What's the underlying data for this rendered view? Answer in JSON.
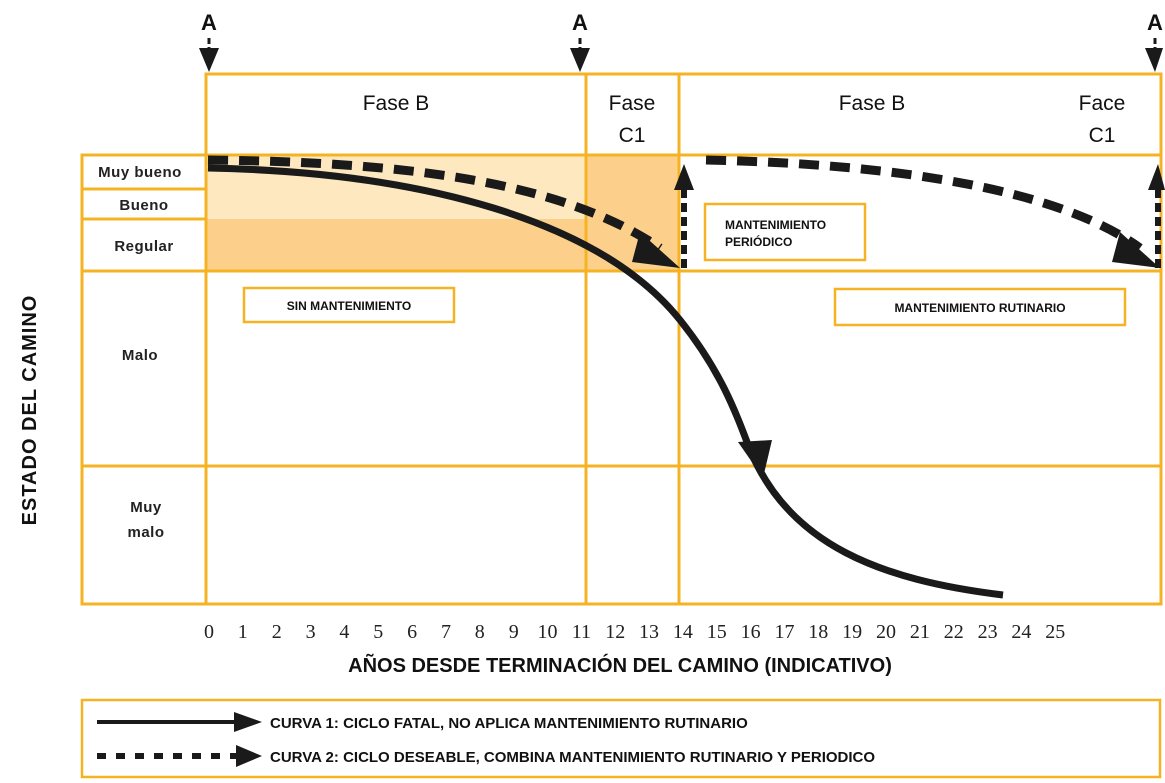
{
  "markers": [
    "A",
    "A",
    "A"
  ],
  "phases": {
    "b1": "Fase B",
    "c1_line1": "Fase",
    "c1_line2": "C1",
    "b2": "Fase B",
    "c2_line1": "Face",
    "c2_line2": "C1"
  },
  "rows": {
    "muy_bueno": "Muy bueno",
    "bueno": "Bueno",
    "regular": "Regular",
    "malo": "Malo",
    "muy_malo_line1": "Muy",
    "muy_malo_line2": "malo"
  },
  "labels": {
    "sin_mantenimiento": "SIN MANTENIMIENTO",
    "mant_periodico_line1": "MANTENIMIENTO",
    "mant_periodico_line2": "PERIÓDICO",
    "mant_rutinario": "MANTENIMIENTO RUTINARIO"
  },
  "x_ticks": [
    "0",
    "1",
    "2",
    "3",
    "4",
    "5",
    "6",
    "7",
    "8",
    "9",
    "10",
    "11",
    "12",
    "13",
    "14",
    "15",
    "16",
    "17",
    "18",
    "19",
    "20",
    "21",
    "22",
    "23",
    "24",
    "25"
  ],
  "x_axis_label": "AÑOS DESDE TERMINACIÓN DEL CAMINO (INDICATIVO)",
  "y_axis_label": "ESTADO DEL CAMINO",
  "legend": {
    "curve1": "CURVA 1: CICLO FATAL, NO APLICA MANTENIMIENTO RUTINARIO",
    "curve2": "CURVA 2: CICLO DESEABLE, COMBINA MANTENIMIENTO RUTINARIO Y PERIODICO"
  },
  "colors": {
    "grid": "#f5b324",
    "light_fill": "#fde8c0",
    "mid_fill": "#fcd08a",
    "curve": "#1a1a1a"
  }
}
